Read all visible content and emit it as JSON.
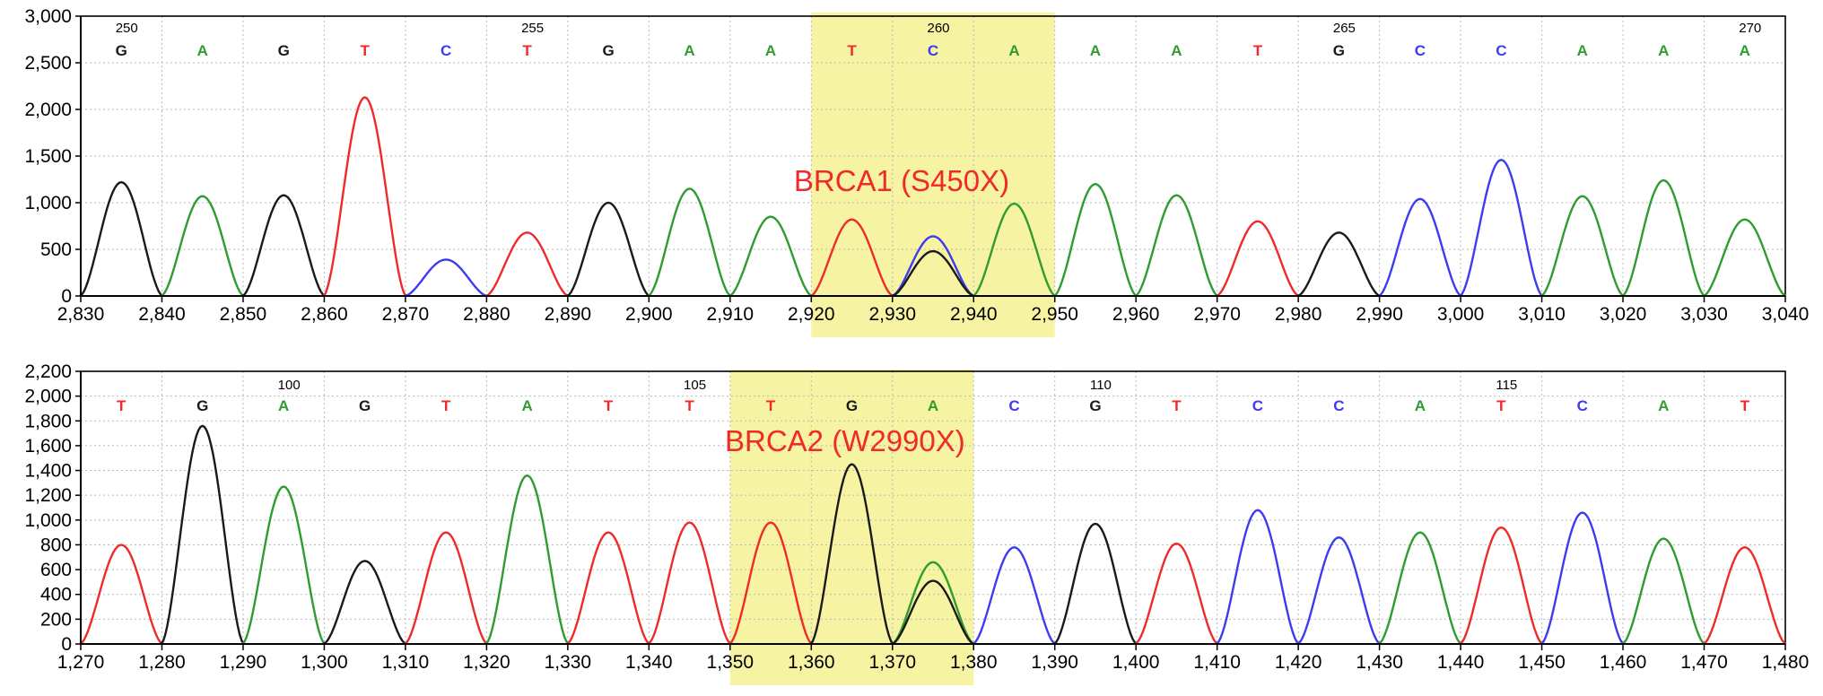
{
  "colors": {
    "A": "#2e9c2e",
    "C": "#3c3cf0",
    "G": "#1a1a1a",
    "T": "#ee2a2a",
    "highlight": "#f6f3a2",
    "annotation": "#ee2a2a"
  },
  "chart_data": [
    {
      "type": "line",
      "title": "",
      "annotation": "BRCA1 (S450X)",
      "xlabel": "",
      "ylabel": "",
      "xlim": [
        2830,
        3040
      ],
      "ylim": [
        0,
        3000
      ],
      "x_ticks": [
        2830,
        2840,
        2850,
        2860,
        2870,
        2880,
        2890,
        2900,
        2910,
        2920,
        2930,
        2940,
        2950,
        2960,
        2970,
        2980,
        2990,
        3000,
        3010,
        3020,
        3030,
        3040
      ],
      "x_tick_labels": [
        "2,830",
        "2,840",
        "2,850",
        "2,860",
        "2,870",
        "2,880",
        "2,890",
        "2,900",
        "2,910",
        "2,920",
        "2,930",
        "2,940",
        "2,950",
        "2,960",
        "2,970",
        "2,980",
        "2,990",
        "3,000",
        "3,010",
        "3,020",
        "3,030",
        "3,040"
      ],
      "y_ticks": [
        0,
        500,
        1000,
        1500,
        2000,
        2500,
        3000
      ],
      "y_tick_labels": [
        "0",
        "500",
        "1,000",
        "1,500",
        "2,000",
        "2,500",
        "3,000"
      ],
      "highlight_x": [
        2920,
        2950
      ],
      "highlight_dividers": [
        2930,
        2940
      ],
      "grid": true,
      "base_calls": [
        "G",
        "A",
        "G",
        "T",
        "C",
        "T",
        "G",
        "A",
        "A",
        "T",
        "C",
        "A",
        "A",
        "A",
        "T",
        "G",
        "C",
        "C",
        "A",
        "A",
        "A"
      ],
      "base_x": [
        2835,
        2845,
        2855,
        2865,
        2875,
        2885,
        2895,
        2905,
        2915,
        2925,
        2935,
        2945,
        2955,
        2965,
        2975,
        2985,
        2995,
        3005,
        3015,
        3025,
        3035
      ],
      "position_labels": [
        {
          "x": 2835,
          "label": "250"
        },
        {
          "x": 2885,
          "label": "255"
        },
        {
          "x": 2935,
          "label": "260"
        },
        {
          "x": 2985,
          "label": "265"
        },
        {
          "x": 3035,
          "label": "270"
        }
      ],
      "peaks": [
        {
          "base": "G",
          "x": 2835,
          "height": 1220
        },
        {
          "base": "A",
          "x": 2845,
          "height": 1070
        },
        {
          "base": "G",
          "x": 2855,
          "height": 1080
        },
        {
          "base": "T",
          "x": 2865,
          "height": 2130
        },
        {
          "base": "C",
          "x": 2875,
          "height": 390
        },
        {
          "base": "T",
          "x": 2885,
          "height": 680
        },
        {
          "base": "G",
          "x": 2895,
          "height": 1000
        },
        {
          "base": "A",
          "x": 2905,
          "height": 1150
        },
        {
          "base": "A",
          "x": 2915,
          "height": 850
        },
        {
          "base": "T",
          "x": 2925,
          "height": 820
        },
        {
          "base": "C",
          "x": 2935,
          "height": 640
        },
        {
          "base": "G",
          "x": 2935,
          "height": 480
        },
        {
          "base": "A",
          "x": 2945,
          "height": 990
        },
        {
          "base": "A",
          "x": 2955,
          "height": 1200
        },
        {
          "base": "A",
          "x": 2965,
          "height": 1080
        },
        {
          "base": "T",
          "x": 2975,
          "height": 800
        },
        {
          "base": "G",
          "x": 2985,
          "height": 680
        },
        {
          "base": "C",
          "x": 2995,
          "height": 1040
        },
        {
          "base": "C",
          "x": 3005,
          "height": 1460
        },
        {
          "base": "A",
          "x": 3015,
          "height": 1070
        },
        {
          "base": "A",
          "x": 3025,
          "height": 1240
        },
        {
          "base": "A",
          "x": 3035,
          "height": 820
        }
      ]
    },
    {
      "type": "line",
      "title": "",
      "annotation": "BRCA2 (W2990X)",
      "xlabel": "",
      "ylabel": "",
      "xlim": [
        1270,
        1480
      ],
      "ylim": [
        0,
        2200
      ],
      "x_ticks": [
        1270,
        1280,
        1290,
        1300,
        1310,
        1320,
        1330,
        1340,
        1350,
        1360,
        1370,
        1380,
        1390,
        1400,
        1410,
        1420,
        1430,
        1440,
        1450,
        1460,
        1470,
        1480
      ],
      "x_tick_labels": [
        "1,270",
        "1,280",
        "1,290",
        "1,300",
        "1,310",
        "1,320",
        "1,330",
        "1,340",
        "1,350",
        "1,360",
        "1,370",
        "1,380",
        "1,390",
        "1,400",
        "1,410",
        "1,420",
        "1,430",
        "1,440",
        "1,450",
        "1,460",
        "1,470",
        "1,480"
      ],
      "y_ticks": [
        0,
        200,
        400,
        600,
        800,
        1000,
        1200,
        1400,
        1600,
        1800,
        2000,
        2200
      ],
      "y_tick_labels": [
        "0",
        "200",
        "400",
        "600",
        "800",
        "1,000",
        "1,200",
        "1,400",
        "1,600",
        "1,800",
        "2,000",
        "2,200"
      ],
      "highlight_x": [
        1350,
        1380
      ],
      "highlight_dividers": [
        1360,
        1370
      ],
      "grid": true,
      "base_calls": [
        "T",
        "G",
        "A",
        "G",
        "T",
        "A",
        "T",
        "T",
        "T",
        "G",
        "A",
        "C",
        "G",
        "T",
        "C",
        "C",
        "A",
        "T",
        "C",
        "A",
        "T"
      ],
      "base_x": [
        1275,
        1285,
        1295,
        1305,
        1315,
        1325,
        1335,
        1345,
        1355,
        1365,
        1375,
        1385,
        1395,
        1405,
        1415,
        1425,
        1435,
        1445,
        1455,
        1465,
        1475
      ],
      "position_labels": [
        {
          "x": 1295,
          "label": "100"
        },
        {
          "x": 1345,
          "label": "105"
        },
        {
          "x": 1395,
          "label": "110"
        },
        {
          "x": 1445,
          "label": "115"
        }
      ],
      "peaks": [
        {
          "base": "T",
          "x": 1275,
          "height": 800
        },
        {
          "base": "G",
          "x": 1285,
          "height": 1760
        },
        {
          "base": "A",
          "x": 1295,
          "height": 1270
        },
        {
          "base": "G",
          "x": 1305,
          "height": 670
        },
        {
          "base": "T",
          "x": 1315,
          "height": 900
        },
        {
          "base": "A",
          "x": 1325,
          "height": 1360
        },
        {
          "base": "T",
          "x": 1335,
          "height": 900
        },
        {
          "base": "T",
          "x": 1345,
          "height": 980
        },
        {
          "base": "T",
          "x": 1355,
          "height": 980
        },
        {
          "base": "G",
          "x": 1365,
          "height": 1450
        },
        {
          "base": "A",
          "x": 1375,
          "height": 660
        },
        {
          "base": "G",
          "x": 1375,
          "height": 510
        },
        {
          "base": "C",
          "x": 1385,
          "height": 780
        },
        {
          "base": "G",
          "x": 1395,
          "height": 970
        },
        {
          "base": "T",
          "x": 1405,
          "height": 810
        },
        {
          "base": "C",
          "x": 1415,
          "height": 1080
        },
        {
          "base": "C",
          "x": 1425,
          "height": 860
        },
        {
          "base": "A",
          "x": 1435,
          "height": 900
        },
        {
          "base": "T",
          "x": 1445,
          "height": 940
        },
        {
          "base": "C",
          "x": 1455,
          "height": 1060
        },
        {
          "base": "A",
          "x": 1465,
          "height": 850
        },
        {
          "base": "T",
          "x": 1475,
          "height": 780
        }
      ]
    }
  ]
}
